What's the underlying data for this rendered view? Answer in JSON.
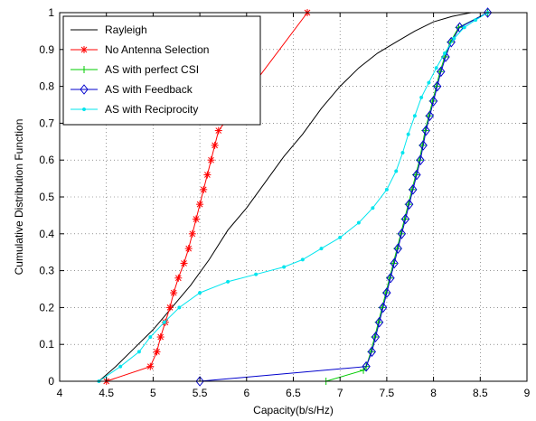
{
  "chart_data": {
    "type": "line",
    "title": "",
    "xlabel": "Capacity(b/s/Hz)",
    "ylabel": "Cumulative Distribution Function",
    "xlim": [
      4,
      9
    ],
    "ylim": [
      0,
      1
    ],
    "xticks": [
      "4",
      "4.5",
      "5",
      "5.5",
      "6",
      "6.5",
      "7",
      "7.5",
      "8",
      "8.5",
      "9"
    ],
    "yticks": [
      "0",
      "0.1",
      "0.2",
      "0.3",
      "0.4",
      "0.5",
      "0.6",
      "0.7",
      "0.8",
      "0.9",
      "1"
    ],
    "grid": "dotted",
    "legend_position": "top-left",
    "series": [
      {
        "name": "Rayleigh",
        "color": "#000000",
        "marker": "none",
        "points": [
          [
            4.42,
            0
          ],
          [
            4.6,
            0.04
          ],
          [
            4.8,
            0.09
          ],
          [
            5.0,
            0.14
          ],
          [
            5.2,
            0.2
          ],
          [
            5.4,
            0.26
          ],
          [
            5.6,
            0.33
          ],
          [
            5.8,
            0.41
          ],
          [
            6.0,
            0.47
          ],
          [
            6.2,
            0.54
          ],
          [
            6.4,
            0.61
          ],
          [
            6.6,
            0.67
          ],
          [
            6.8,
            0.74
          ],
          [
            7.0,
            0.8
          ],
          [
            7.2,
            0.85
          ],
          [
            7.4,
            0.89
          ],
          [
            7.6,
            0.92
          ],
          [
            7.8,
            0.95
          ],
          [
            8.0,
            0.975
          ],
          [
            8.2,
            0.99
          ],
          [
            8.4,
            1.0
          ],
          [
            8.58,
            1.0
          ]
        ]
      },
      {
        "name": "No Antenna Selection",
        "color": "#ff0000",
        "marker": "star",
        "points": [
          [
            4.5,
            0
          ],
          [
            4.97,
            0.04
          ],
          [
            5.04,
            0.08
          ],
          [
            5.08,
            0.12
          ],
          [
            5.13,
            0.16
          ],
          [
            5.18,
            0.2
          ],
          [
            5.22,
            0.24
          ],
          [
            5.27,
            0.28
          ],
          [
            5.33,
            0.32
          ],
          [
            5.38,
            0.36
          ],
          [
            5.42,
            0.4
          ],
          [
            5.46,
            0.44
          ],
          [
            5.5,
            0.48
          ],
          [
            5.54,
            0.52
          ],
          [
            5.58,
            0.56
          ],
          [
            5.62,
            0.6
          ],
          [
            5.66,
            0.64
          ],
          [
            5.7,
            0.68
          ],
          [
            6.65,
            1.0
          ]
        ]
      },
      {
        "name": "AS with perfect CSI",
        "color": "#00cc00",
        "marker": "plus",
        "points": [
          [
            6.85,
            0
          ],
          [
            7.25,
            0.03
          ],
          [
            7.28,
            0.04
          ],
          [
            7.33,
            0.08
          ],
          [
            7.37,
            0.12
          ],
          [
            7.41,
            0.16
          ],
          [
            7.45,
            0.2
          ],
          [
            7.49,
            0.24
          ],
          [
            7.53,
            0.28
          ],
          [
            7.57,
            0.32
          ],
          [
            7.61,
            0.36
          ],
          [
            7.65,
            0.4
          ],
          [
            7.69,
            0.44
          ],
          [
            7.73,
            0.48
          ],
          [
            7.77,
            0.52
          ],
          [
            7.81,
            0.56
          ],
          [
            7.85,
            0.6
          ],
          [
            7.88,
            0.64
          ],
          [
            7.91,
            0.68
          ],
          [
            7.95,
            0.72
          ],
          [
            7.99,
            0.76
          ],
          [
            8.03,
            0.8
          ],
          [
            8.07,
            0.84
          ],
          [
            8.12,
            0.88
          ],
          [
            8.18,
            0.92
          ],
          [
            8.27,
            0.96
          ],
          [
            8.58,
            1.0
          ]
        ]
      },
      {
        "name": "AS with Feedback",
        "color": "#0000cc",
        "marker": "diamond",
        "points": [
          [
            5.5,
            0
          ],
          [
            7.28,
            0.04
          ],
          [
            7.34,
            0.08
          ],
          [
            7.38,
            0.12
          ],
          [
            7.42,
            0.16
          ],
          [
            7.46,
            0.2
          ],
          [
            7.5,
            0.24
          ],
          [
            7.54,
            0.28
          ],
          [
            7.58,
            0.32
          ],
          [
            7.62,
            0.36
          ],
          [
            7.66,
            0.4
          ],
          [
            7.7,
            0.44
          ],
          [
            7.74,
            0.48
          ],
          [
            7.78,
            0.52
          ],
          [
            7.82,
            0.56
          ],
          [
            7.86,
            0.6
          ],
          [
            7.89,
            0.64
          ],
          [
            7.92,
            0.68
          ],
          [
            7.96,
            0.72
          ],
          [
            8.0,
            0.76
          ],
          [
            8.04,
            0.8
          ],
          [
            8.08,
            0.84
          ],
          [
            8.13,
            0.88
          ],
          [
            8.19,
            0.92
          ],
          [
            8.28,
            0.96
          ],
          [
            8.58,
            1.0
          ]
        ]
      },
      {
        "name": "AS with Reciprocity",
        "color": "#00e5ee",
        "marker": "dot",
        "points": [
          [
            4.42,
            0
          ],
          [
            4.65,
            0.04
          ],
          [
            4.85,
            0.08
          ],
          [
            4.97,
            0.12
          ],
          [
            5.12,
            0.16
          ],
          [
            5.28,
            0.2
          ],
          [
            5.5,
            0.24
          ],
          [
            5.8,
            0.27
          ],
          [
            6.1,
            0.29
          ],
          [
            6.4,
            0.31
          ],
          [
            6.6,
            0.33
          ],
          [
            6.8,
            0.36
          ],
          [
            7.0,
            0.39
          ],
          [
            7.2,
            0.43
          ],
          [
            7.35,
            0.47
          ],
          [
            7.5,
            0.52
          ],
          [
            7.6,
            0.57
          ],
          [
            7.67,
            0.62
          ],
          [
            7.73,
            0.67
          ],
          [
            7.8,
            0.72
          ],
          [
            7.87,
            0.77
          ],
          [
            7.95,
            0.81
          ],
          [
            8.03,
            0.85
          ],
          [
            8.12,
            0.89
          ],
          [
            8.22,
            0.93
          ],
          [
            8.33,
            0.96
          ],
          [
            8.45,
            0.98
          ],
          [
            8.58,
            1.0
          ]
        ]
      }
    ]
  }
}
